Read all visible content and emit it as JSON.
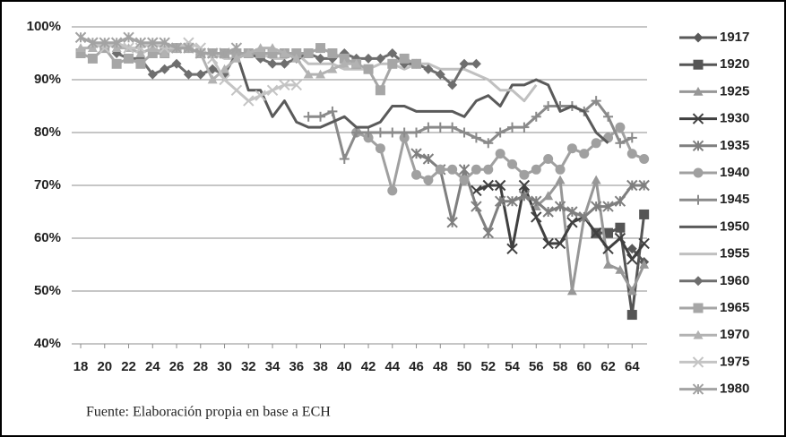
{
  "chart_data": {
    "type": "line",
    "x": [
      18,
      19,
      20,
      21,
      22,
      23,
      24,
      25,
      26,
      27,
      28,
      29,
      30,
      31,
      32,
      33,
      34,
      35,
      36,
      37,
      38,
      39,
      40,
      41,
      42,
      43,
      44,
      45,
      46,
      47,
      48,
      49,
      50,
      51,
      52,
      53,
      54,
      55,
      56,
      57,
      58,
      59,
      60,
      61,
      62,
      63,
      64,
      65
    ],
    "xlim": [
      17.25,
      65.25
    ],
    "xticks": [
      18,
      20,
      22,
      24,
      26,
      28,
      30,
      32,
      34,
      36,
      38,
      40,
      42,
      44,
      46,
      48,
      50,
      52,
      54,
      56,
      58,
      60,
      62,
      64
    ],
    "ylim": [
      40,
      100
    ],
    "yticks": [
      {
        "value": 40,
        "label": "40%"
      },
      {
        "value": 50,
        "label": "50%"
      },
      {
        "value": 60,
        "label": "60%"
      },
      {
        "value": 70,
        "label": "70%"
      },
      {
        "value": 80,
        "label": "80%"
      },
      {
        "value": 90,
        "label": "90%"
      },
      {
        "value": 100,
        "label": "100%"
      }
    ],
    "grid": true,
    "legend": "right",
    "source": "Fuente: Elaboración propia en base a ECH",
    "series": [
      {
        "name": "1917",
        "color": "#595959",
        "marker": "diamond",
        "values": [
          null,
          null,
          null,
          null,
          null,
          null,
          null,
          null,
          null,
          null,
          null,
          null,
          null,
          null,
          null,
          null,
          null,
          null,
          null,
          null,
          null,
          null,
          null,
          null,
          null,
          null,
          null,
          null,
          null,
          null,
          null,
          null,
          null,
          null,
          null,
          null,
          null,
          null,
          null,
          null,
          null,
          null,
          null,
          null,
          null,
          null,
          58,
          55.5
        ]
      },
      {
        "name": "1920",
        "color": "#555555",
        "marker": "square",
        "values": [
          null,
          null,
          null,
          null,
          null,
          null,
          null,
          null,
          null,
          null,
          null,
          null,
          null,
          null,
          null,
          null,
          null,
          null,
          null,
          null,
          null,
          null,
          null,
          null,
          null,
          null,
          null,
          null,
          null,
          null,
          null,
          null,
          null,
          null,
          null,
          null,
          null,
          null,
          null,
          null,
          null,
          null,
          null,
          61,
          61,
          62,
          45.5,
          64.5
        ]
      },
      {
        "name": "1925",
        "color": "#979797",
        "marker": "triangle",
        "values": [
          null,
          null,
          null,
          null,
          null,
          null,
          null,
          null,
          null,
          null,
          null,
          null,
          null,
          null,
          null,
          null,
          null,
          null,
          null,
          null,
          null,
          null,
          null,
          null,
          null,
          null,
          null,
          null,
          null,
          null,
          null,
          null,
          null,
          null,
          null,
          null,
          null,
          null,
          66,
          68,
          71,
          50,
          64,
          71,
          55,
          54,
          50,
          55
        ]
      },
      {
        "name": "1930",
        "color": "#404040",
        "marker": "x",
        "values": [
          null,
          null,
          null,
          null,
          null,
          null,
          null,
          null,
          null,
          null,
          null,
          null,
          null,
          null,
          null,
          null,
          null,
          null,
          null,
          null,
          null,
          null,
          null,
          null,
          null,
          null,
          null,
          null,
          null,
          null,
          null,
          null,
          null,
          69,
          70,
          70,
          58,
          70,
          64,
          59,
          59,
          63,
          64,
          61,
          58,
          60,
          56,
          59
        ]
      },
      {
        "name": "1935",
        "color": "#7f7f7f",
        "marker": "star",
        "values": [
          null,
          null,
          null,
          null,
          null,
          null,
          null,
          null,
          null,
          null,
          null,
          null,
          null,
          null,
          null,
          null,
          null,
          null,
          null,
          null,
          null,
          null,
          null,
          null,
          null,
          null,
          null,
          null,
          76,
          75,
          73,
          63,
          73,
          66,
          61,
          67,
          67,
          68,
          67,
          65,
          66,
          65,
          64,
          66,
          66,
          67,
          70,
          70
        ]
      },
      {
        "name": "1940",
        "color": "#a0a0a0",
        "marker": "circle",
        "values": [
          null,
          null,
          null,
          null,
          null,
          null,
          null,
          null,
          null,
          null,
          null,
          null,
          null,
          null,
          null,
          null,
          null,
          null,
          null,
          null,
          null,
          null,
          null,
          80,
          79,
          77,
          69,
          79,
          72,
          71,
          73,
          73,
          71,
          73,
          73,
          76,
          74,
          72,
          73,
          75,
          73,
          77,
          76,
          78,
          79,
          81,
          76,
          75
        ]
      },
      {
        "name": "1945",
        "color": "#8a8a8a",
        "marker": "plus",
        "values": [
          null,
          null,
          null,
          null,
          null,
          null,
          null,
          null,
          null,
          null,
          null,
          null,
          null,
          null,
          null,
          null,
          null,
          null,
          null,
          83,
          83,
          84,
          75,
          80,
          80,
          80,
          80,
          80,
          80,
          81,
          81,
          81,
          80,
          79,
          78,
          80,
          81,
          81,
          83,
          85,
          85,
          85,
          84,
          86,
          83,
          78,
          79,
          null
        ]
      },
      {
        "name": "1950",
        "color": "#5a5a5a",
        "marker": "none",
        "values": [
          null,
          null,
          null,
          null,
          null,
          null,
          null,
          null,
          null,
          null,
          null,
          null,
          null,
          95,
          88,
          88,
          83,
          86,
          82,
          81,
          81,
          82,
          83,
          81,
          81,
          82,
          85,
          85,
          84,
          84,
          84,
          84,
          83,
          86,
          87,
          85,
          89,
          89,
          90,
          89,
          84,
          85,
          84,
          80,
          78,
          null,
          null,
          null
        ]
      },
      {
        "name": "1955",
        "color": "#c0c0c0",
        "marker": "none",
        "values": [
          null,
          null,
          null,
          null,
          null,
          null,
          null,
          null,
          96,
          96,
          95,
          95,
          94,
          94,
          95,
          95,
          94,
          94,
          95,
          93,
          93,
          93,
          92,
          92,
          92,
          93,
          93,
          92,
          93,
          93,
          92,
          92,
          92,
          91,
          90,
          88,
          88,
          86,
          89,
          null,
          null,
          null,
          null,
          null,
          null,
          null,
          null,
          null
        ]
      },
      {
        "name": "1960",
        "color": "#6e6e6e",
        "marker": "diamond",
        "values": [
          null,
          null,
          null,
          95,
          94,
          94,
          91,
          92,
          93,
          91,
          91,
          92,
          91,
          95,
          95,
          94,
          93,
          93,
          94,
          95,
          94,
          94,
          95,
          94,
          94,
          94,
          95,
          93,
          93,
          92,
          91,
          89,
          93,
          93,
          null,
          null,
          null,
          null,
          null,
          null,
          null,
          null,
          null,
          null,
          null,
          null,
          null,
          null
        ]
      },
      {
        "name": "1965",
        "color": "#a6a6a6",
        "marker": "square",
        "values": [
          95,
          94,
          96,
          93,
          94,
          93,
          95,
          95,
          96,
          96,
          95,
          95,
          95,
          95,
          95,
          95,
          95,
          95,
          95,
          95,
          96,
          95,
          94,
          93,
          92,
          88,
          93,
          94,
          93,
          null,
          null,
          null,
          null,
          null,
          null,
          null,
          null,
          null,
          null,
          null,
          null,
          null,
          null,
          null,
          null,
          null,
          null,
          null
        ]
      },
      {
        "name": "1970",
        "color": "#b2b2b2",
        "marker": "triangle",
        "values": [
          96,
          96,
          97,
          96,
          96,
          95,
          96,
          95,
          96,
          96,
          95,
          90,
          92,
          94,
          95,
          96,
          96,
          95,
          94,
          91,
          91,
          92,
          93,
          93,
          null,
          null,
          null,
          null,
          null,
          null,
          null,
          null,
          null,
          null,
          null,
          null,
          null,
          null,
          null,
          null,
          null,
          null,
          null,
          null,
          null,
          null,
          null,
          null
        ]
      },
      {
        "name": "1975",
        "color": "#c4c4c4",
        "marker": "x",
        "values": [
          98,
          97,
          96,
          97,
          96,
          96,
          97,
          96,
          96,
          97,
          96,
          94,
          90,
          88,
          86,
          87,
          88,
          89,
          89,
          null,
          null,
          null,
          null,
          null,
          null,
          null,
          null,
          null,
          null,
          null,
          null,
          null,
          null,
          null,
          null,
          null,
          null,
          null,
          null,
          null,
          null,
          null,
          null,
          null,
          null,
          null,
          null,
          null
        ]
      },
      {
        "name": "1980",
        "color": "#a3a3a3",
        "marker": "star",
        "values": [
          98,
          97,
          97,
          97,
          98,
          97,
          97,
          97,
          96,
          96,
          95,
          95,
          95,
          96,
          null,
          null,
          null,
          null,
          null,
          null,
          null,
          null,
          null,
          null,
          null,
          null,
          null,
          null,
          null,
          null,
          null,
          null,
          null,
          null,
          null,
          null,
          null,
          null,
          null,
          null,
          null,
          null,
          null,
          null,
          null,
          null,
          null,
          null
        ]
      }
    ]
  }
}
